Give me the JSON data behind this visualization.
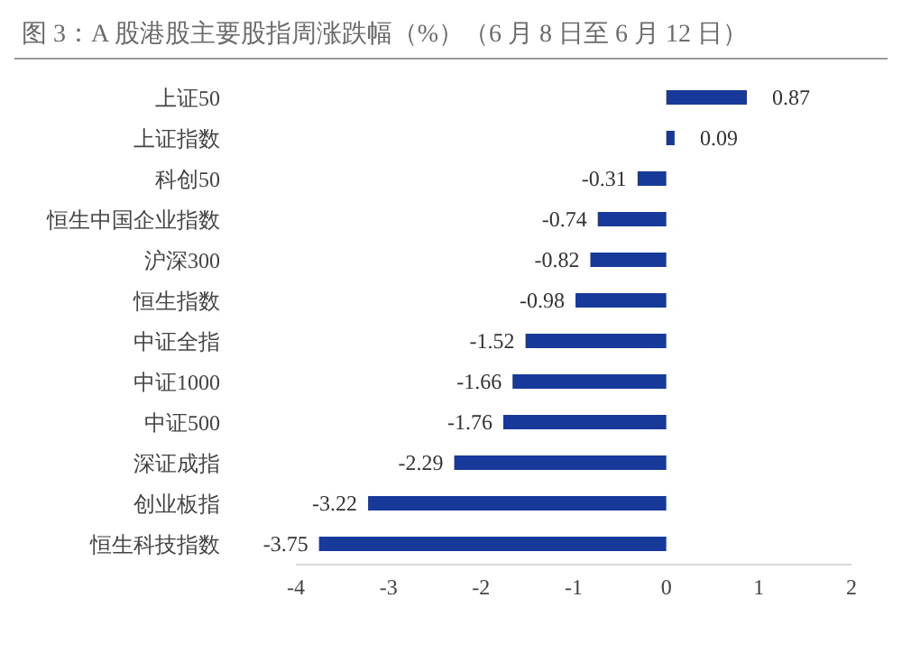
{
  "chart_data": {
    "type": "bar",
    "orientation": "horizontal",
    "title": "图 3：A 股港股主要股指周涨跌幅（%）（6 月 8 日至 6 月 12 日）",
    "categories": [
      "上证50",
      "上证指数",
      "科创50",
      "恒生中国企业指数",
      "沪深300",
      "恒生指数",
      "中证全指",
      "中证1000",
      "中证500",
      "深证成指",
      "创业板指",
      "恒生科技指数"
    ],
    "values": [
      0.87,
      0.09,
      -0.31,
      -0.74,
      -0.82,
      -0.98,
      -1.52,
      -1.66,
      -1.76,
      -2.29,
      -3.22,
      -3.75
    ],
    "color": "#17399a",
    "xlim": [
      -4,
      2
    ],
    "xticks": [
      -4,
      -3,
      -2,
      -1,
      0,
      1,
      2
    ],
    "data_labels": true,
    "grid": false,
    "legend": false
  }
}
